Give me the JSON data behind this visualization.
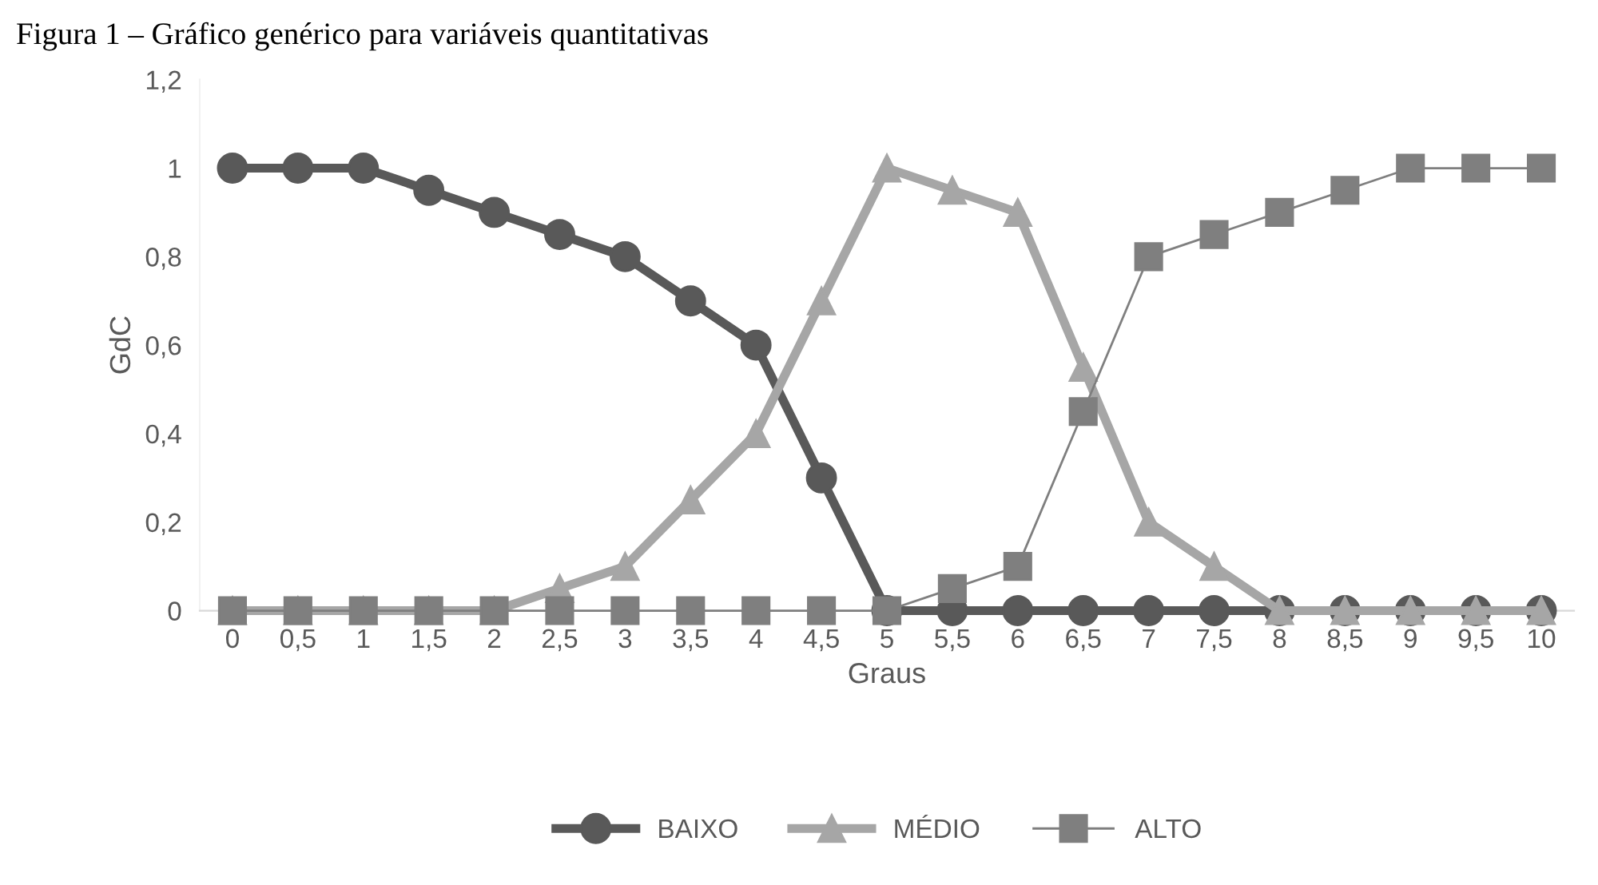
{
  "chart_data": {
    "type": "line",
    "title": "Figura 1 – Gráfico genérico para variáveis quantitativas",
    "xlabel": "Graus",
    "ylabel": "GdC",
    "categories": [
      "0",
      "0,5",
      "1",
      "1,5",
      "2",
      "2,5",
      "3",
      "3,5",
      "4",
      "4,5",
      "5",
      "5,5",
      "6",
      "6,5",
      "7",
      "7,5",
      "8",
      "8,5",
      "9",
      "9,5",
      "10"
    ],
    "series": [
      {
        "name": "BAIXO",
        "color": "#595959",
        "marker": "circle",
        "values": [
          1,
          1,
          1,
          0.95,
          0.9,
          0.85,
          0.8,
          0.7,
          0.6,
          0.3,
          0,
          0,
          0,
          0,
          0,
          0,
          0,
          0,
          0,
          0,
          0
        ]
      },
      {
        "name": "MÉDIO",
        "color": "#a6a6a6",
        "marker": "triangle",
        "values": [
          0,
          0,
          0,
          0,
          0,
          0.05,
          0.1,
          0.25,
          0.4,
          0.7,
          1,
          0.95,
          0.9,
          0.55,
          0.2,
          0.1,
          0,
          0,
          0,
          0,
          0
        ]
      },
      {
        "name": "ALTO",
        "color": "#7f7f7f",
        "marker": "square",
        "values": [
          0,
          0,
          0,
          0,
          0,
          0,
          0,
          0,
          0,
          0,
          0,
          0.05,
          0.1,
          0.45,
          0.8,
          0.85,
          0.9,
          0.95,
          1,
          1,
          1
        ]
      }
    ],
    "ylim": [
      0,
      1.2
    ],
    "yticks": [
      {
        "value": 0,
        "label": "0"
      },
      {
        "value": 0.2,
        "label": "0,2"
      },
      {
        "value": 0.4,
        "label": "0,4"
      },
      {
        "value": 0.6,
        "label": "0,6"
      },
      {
        "value": 0.8,
        "label": "0,8"
      },
      {
        "value": 1,
        "label": "1"
      },
      {
        "value": 1.2,
        "label": "1,2"
      }
    ],
    "grid": false,
    "legend": "bottom",
    "line_style": "solid"
  }
}
